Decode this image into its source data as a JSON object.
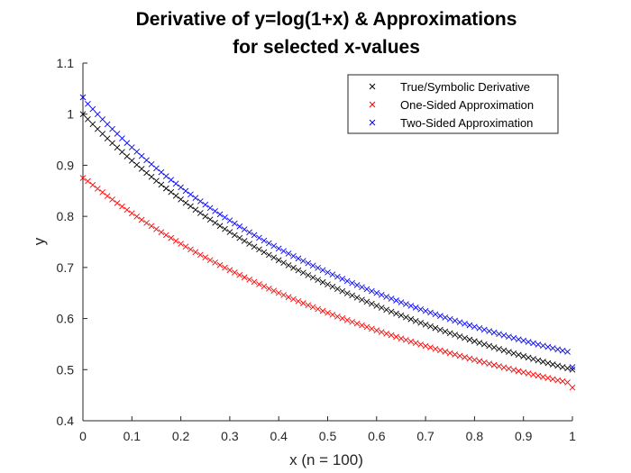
{
  "chart_data": {
    "type": "scatter",
    "title": [
      "Derivative of y=log(1+x) & Approximations",
      "for selected x-values"
    ],
    "xlabel": "x (n = 100)",
    "ylabel": "y",
    "xlim": [
      0,
      1
    ],
    "ylim": [
      0.4,
      1.1
    ],
    "xticks": [
      "0",
      "0.1",
      "0.2",
      "0.3",
      "0.4",
      "0.5",
      "0.6",
      "0.7",
      "0.8",
      "0.9",
      "1"
    ],
    "yticks": [
      "0.4",
      "0.5",
      "0.6",
      "0.7",
      "0.8",
      "0.9",
      "1",
      "1.1"
    ],
    "marker": "x",
    "legend_location": "top-right",
    "x": {
      "start": 0,
      "end": 1,
      "count": 101
    },
    "series": [
      {
        "name": "True/Symbolic Derivative",
        "color": "#000000",
        "values": [
          1.0,
          0.9901,
          0.9804,
          0.9709,
          0.9615,
          0.9524,
          0.9434,
          0.9346,
          0.9259,
          0.9174,
          0.9091,
          0.9009,
          0.8929,
          0.885,
          0.8772,
          0.8696,
          0.8621,
          0.8547,
          0.8475,
          0.8403,
          0.8333,
          0.8264,
          0.8197,
          0.813,
          0.8065,
          0.8,
          0.7937,
          0.7874,
          0.7813,
          0.7752,
          0.7692,
          0.7634,
          0.7576,
          0.7519,
          0.7463,
          0.7407,
          0.7353,
          0.7299,
          0.7246,
          0.7194,
          0.7143,
          0.7092,
          0.7042,
          0.6993,
          0.6944,
          0.6897,
          0.6849,
          0.6803,
          0.6757,
          0.6711,
          0.6667,
          0.6623,
          0.6579,
          0.6536,
          0.6494,
          0.6452,
          0.641,
          0.6369,
          0.6329,
          0.6289,
          0.625,
          0.6211,
          0.6173,
          0.6135,
          0.6098,
          0.6061,
          0.6024,
          0.5988,
          0.5952,
          0.5917,
          0.5882,
          0.5848,
          0.5814,
          0.578,
          0.5747,
          0.5714,
          0.5682,
          0.565,
          0.5618,
          0.5587,
          0.5556,
          0.5525,
          0.5495,
          0.5464,
          0.5435,
          0.5405,
          0.5376,
          0.5348,
          0.5319,
          0.5291,
          0.5263,
          0.5236,
          0.5208,
          0.5181,
          0.5155,
          0.5128,
          0.5102,
          0.5076,
          0.5051,
          0.5025,
          0.5
        ]
      },
      {
        "name": "One-Sided Approximation",
        "color": "#ff0000",
        "values": [
          0.875,
          0.869,
          0.8615,
          0.8542,
          0.847,
          0.8399,
          0.8329,
          0.826,
          0.8193,
          0.8127,
          0.8061,
          0.7997,
          0.7934,
          0.7872,
          0.7811,
          0.775,
          0.7691,
          0.7633,
          0.7575,
          0.7519,
          0.7463,
          0.7408,
          0.7354,
          0.7301,
          0.7248,
          0.7196,
          0.7145,
          0.7095,
          0.7046,
          0.6997,
          0.6949,
          0.6901,
          0.6854,
          0.6808,
          0.6763,
          0.6718,
          0.6673,
          0.663,
          0.6587,
          0.6544,
          0.6502,
          0.6461,
          0.642,
          0.638,
          0.634,
          0.6301,
          0.6262,
          0.6224,
          0.6186,
          0.6149,
          0.6112,
          0.6076,
          0.604,
          0.6005,
          0.597,
          0.5935,
          0.5901,
          0.5867,
          0.5834,
          0.5801,
          0.5768,
          0.5736,
          0.5704,
          0.5673,
          0.5642,
          0.5611,
          0.5581,
          0.5551,
          0.5521,
          0.5492,
          0.5463,
          0.5435,
          0.5406,
          0.5378,
          0.5351,
          0.5323,
          0.5296,
          0.527,
          0.5243,
          0.5217,
          0.5191,
          0.5166,
          0.5141,
          0.5116,
          0.5091,
          0.5067,
          0.5043,
          0.5019,
          0.4995,
          0.4972,
          0.4948,
          0.4926,
          0.4903,
          0.488,
          0.4858,
          0.4836,
          0.4815,
          0.4793,
          0.4772,
          0.4751,
          0.465
        ]
      },
      {
        "name": "Two-Sided Approximation",
        "color": "#0000ff",
        "values": [
          1.033,
          1.0202,
          1.0099,
          0.9999,
          0.99,
          0.9803,
          0.9709,
          0.9616,
          0.9526,
          0.9437,
          0.935,
          0.9265,
          0.9181,
          0.9099,
          0.9019,
          0.894,
          0.8863,
          0.8787,
          0.8713,
          0.864,
          0.8568,
          0.8498,
          0.8429,
          0.8361,
          0.8294,
          0.8229,
          0.8165,
          0.8102,
          0.804,
          0.7979,
          0.7919,
          0.786,
          0.7802,
          0.7745,
          0.7689,
          0.7634,
          0.758,
          0.7526,
          0.7474,
          0.7422,
          0.7371,
          0.7321,
          0.7272,
          0.7224,
          0.7176,
          0.7129,
          0.7082,
          0.7037,
          0.6992,
          0.6948,
          0.6904,
          0.6861,
          0.6818,
          0.6777,
          0.6735,
          0.6695,
          0.6655,
          0.6615,
          0.6576,
          0.6538,
          0.65,
          0.6463,
          0.6426,
          0.639,
          0.6354,
          0.6318,
          0.6283,
          0.6249,
          0.6215,
          0.6181,
          0.6148,
          0.6116,
          0.6083,
          0.6052,
          0.602,
          0.5989,
          0.5958,
          0.5928,
          0.5898,
          0.5869,
          0.584,
          0.5811,
          0.5782,
          0.5754,
          0.5727,
          0.5699,
          0.5672,
          0.5646,
          0.5619,
          0.5593,
          0.5568,
          0.5542,
          0.5517,
          0.5492,
          0.5468,
          0.5444,
          0.542,
          0.5396,
          0.5373,
          0.535,
          0.505
        ]
      }
    ]
  }
}
